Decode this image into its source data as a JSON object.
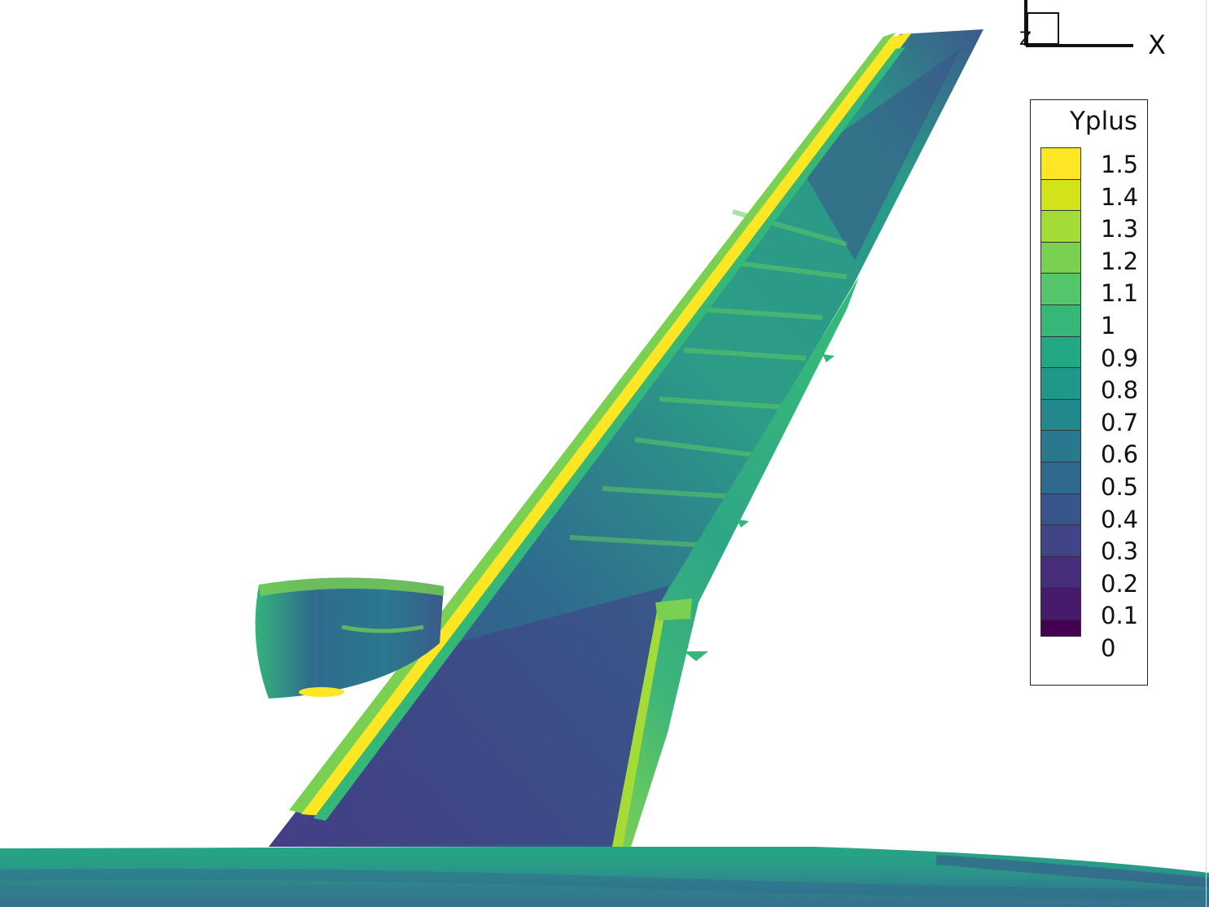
{
  "legend": {
    "title": "Yplus",
    "labels": [
      "1.5",
      "1.4",
      "1.3",
      "1.2",
      "1.1",
      "1",
      "0.9",
      "0.8",
      "0.7",
      "0.6",
      "0.5",
      "0.4",
      "0.3",
      "0.2",
      "0.1",
      "0"
    ],
    "colors": [
      "#fde725",
      "#d2e21b",
      "#a5db36",
      "#7ad151",
      "#54c568",
      "#35b779",
      "#22a884",
      "#1f988b",
      "#23888e",
      "#2a788e",
      "#31688e",
      "#39568c",
      "#414487",
      "#472d7b",
      "#481a6c",
      "#440154"
    ]
  },
  "axes": {
    "x_label": "X",
    "z_label": "Z"
  },
  "scene": {
    "palette": {
      "bright": "#fde725",
      "high": "#7ad151",
      "mid": "#35b779",
      "teal": "#23888e",
      "low": "#39568c",
      "deep": "#472d7b"
    }
  }
}
